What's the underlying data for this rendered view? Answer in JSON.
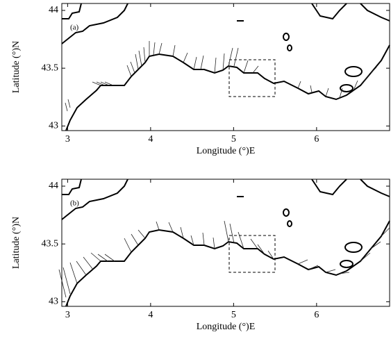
{
  "chart_data": [
    {
      "type": "quiver",
      "annotation": "(a)",
      "xlabel": "Longitude (°)E",
      "ylabel": "Latitude (°)N",
      "xlim": [
        2.93,
        6.88
      ],
      "ylim": [
        42.96,
        44.06
      ],
      "xticks": [
        3,
        4,
        5,
        6
      ],
      "yticks": [
        43,
        43.5,
        44
      ]
    },
    {
      "type": "quiver",
      "annotation": "(b)",
      "xlabel": "Longitude (°)E",
      "ylabel": "Latitude (°)N",
      "xlim": [
        2.93,
        6.88
      ],
      "ylim": [
        42.96,
        44.06
      ],
      "xticks": [
        3,
        4,
        5,
        6
      ],
      "yticks": [
        43,
        43.5,
        44
      ]
    }
  ]
}
